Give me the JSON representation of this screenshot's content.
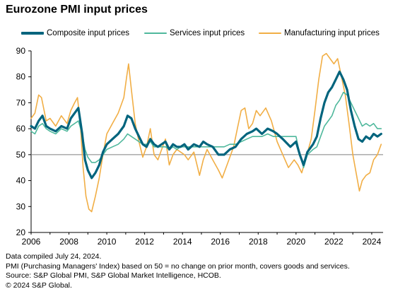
{
  "chart_data": {
    "type": "line",
    "title": "Eurozone PMI input prices",
    "xlabel": "",
    "ylabel": "",
    "xlim": [
      2006,
      2024.6
    ],
    "ylim": [
      20,
      90
    ],
    "yticks": [
      "20",
      "30",
      "40",
      "50",
      "60",
      "70",
      "80",
      "90"
    ],
    "xticks": [
      "2006",
      "2008",
      "2010",
      "2012",
      "2014",
      "2016",
      "2018",
      "2020",
      "2022",
      "2024"
    ],
    "reference_line": 50,
    "grid": false,
    "legend_position": "top",
    "colors": {
      "composite": "#00647d",
      "services": "#4fb89c",
      "manufacturing": "#f1ae45",
      "reference": "#7f7f7f",
      "axis": "#000000"
    },
    "series": [
      {
        "name": "Composite input prices",
        "key": "composite",
        "points": [
          [
            2006.0,
            61
          ],
          [
            2006.2,
            60
          ],
          [
            2006.4,
            63
          ],
          [
            2006.6,
            65
          ],
          [
            2006.8,
            61
          ],
          [
            2007.0,
            60
          ],
          [
            2007.3,
            59
          ],
          [
            2007.6,
            61
          ],
          [
            2007.9,
            60
          ],
          [
            2008.1,
            64
          ],
          [
            2008.3,
            66
          ],
          [
            2008.5,
            68
          ],
          [
            2008.7,
            58
          ],
          [
            2008.85,
            48
          ],
          [
            2009.0,
            44
          ],
          [
            2009.2,
            41
          ],
          [
            2009.4,
            43
          ],
          [
            2009.6,
            46
          ],
          [
            2009.8,
            51
          ],
          [
            2010.0,
            54
          ],
          [
            2010.3,
            56
          ],
          [
            2010.6,
            58
          ],
          [
            2010.9,
            61
          ],
          [
            2011.1,
            65
          ],
          [
            2011.3,
            64
          ],
          [
            2011.5,
            60
          ],
          [
            2011.7,
            57
          ],
          [
            2011.9,
            54
          ],
          [
            2012.1,
            53
          ],
          [
            2012.3,
            56
          ],
          [
            2012.5,
            54
          ],
          [
            2012.7,
            53
          ],
          [
            2012.9,
            54
          ],
          [
            2013.1,
            55
          ],
          [
            2013.3,
            52
          ],
          [
            2013.5,
            54
          ],
          [
            2013.7,
            53
          ],
          [
            2013.9,
            53
          ],
          [
            2014.1,
            54
          ],
          [
            2014.3,
            52
          ],
          [
            2014.6,
            54
          ],
          [
            2014.9,
            53
          ],
          [
            2015.1,
            55
          ],
          [
            2015.3,
            54
          ],
          [
            2015.6,
            53
          ],
          [
            2015.9,
            50
          ],
          [
            2016.2,
            50
          ],
          [
            2016.5,
            52
          ],
          [
            2016.8,
            53
          ],
          [
            2017.1,
            56
          ],
          [
            2017.4,
            58
          ],
          [
            2017.7,
            59
          ],
          [
            2017.9,
            60
          ],
          [
            2018.2,
            58
          ],
          [
            2018.5,
            60
          ],
          [
            2018.8,
            59
          ],
          [
            2019.0,
            58
          ],
          [
            2019.3,
            56
          ],
          [
            2019.7,
            53
          ],
          [
            2020.0,
            55
          ],
          [
            2020.2,
            50
          ],
          [
            2020.4,
            46
          ],
          [
            2020.6,
            51
          ],
          [
            2020.9,
            54
          ],
          [
            2021.1,
            57
          ],
          [
            2021.3,
            64
          ],
          [
            2021.5,
            70
          ],
          [
            2021.7,
            74
          ],
          [
            2021.9,
            76
          ],
          [
            2022.1,
            79
          ],
          [
            2022.3,
            82
          ],
          [
            2022.5,
            79
          ],
          [
            2022.7,
            75
          ],
          [
            2022.9,
            67
          ],
          [
            2023.1,
            61
          ],
          [
            2023.3,
            56
          ],
          [
            2023.5,
            55
          ],
          [
            2023.7,
            57
          ],
          [
            2023.9,
            56
          ],
          [
            2024.1,
            58
          ],
          [
            2024.3,
            57
          ],
          [
            2024.5,
            58
          ]
        ]
      },
      {
        "name": "Services input prices",
        "key": "services",
        "points": [
          [
            2006.0,
            59
          ],
          [
            2006.2,
            58
          ],
          [
            2006.4,
            61
          ],
          [
            2006.6,
            62
          ],
          [
            2006.8,
            60
          ],
          [
            2007.0,
            59
          ],
          [
            2007.3,
            58
          ],
          [
            2007.6,
            60
          ],
          [
            2007.9,
            59
          ],
          [
            2008.1,
            61
          ],
          [
            2008.3,
            62
          ],
          [
            2008.5,
            63
          ],
          [
            2008.7,
            58
          ],
          [
            2008.85,
            52
          ],
          [
            2009.0,
            49
          ],
          [
            2009.2,
            47
          ],
          [
            2009.4,
            47
          ],
          [
            2009.6,
            48
          ],
          [
            2009.8,
            50
          ],
          [
            2010.0,
            52
          ],
          [
            2010.3,
            53
          ],
          [
            2010.6,
            54
          ],
          [
            2010.9,
            56
          ],
          [
            2011.1,
            58
          ],
          [
            2011.3,
            57
          ],
          [
            2011.5,
            56
          ],
          [
            2011.7,
            55
          ],
          [
            2011.9,
            54
          ],
          [
            2012.1,
            54
          ],
          [
            2012.3,
            55
          ],
          [
            2012.5,
            53
          ],
          [
            2012.7,
            53
          ],
          [
            2012.9,
            53
          ],
          [
            2013.1,
            53
          ],
          [
            2013.3,
            52
          ],
          [
            2013.5,
            53
          ],
          [
            2013.7,
            52
          ],
          [
            2013.9,
            53
          ],
          [
            2014.1,
            53
          ],
          [
            2014.3,
            53
          ],
          [
            2014.6,
            53
          ],
          [
            2014.9,
            53
          ],
          [
            2015.1,
            53
          ],
          [
            2015.3,
            53
          ],
          [
            2015.6,
            53
          ],
          [
            2015.9,
            53
          ],
          [
            2016.2,
            53
          ],
          [
            2016.5,
            54
          ],
          [
            2016.8,
            54
          ],
          [
            2017.1,
            55
          ],
          [
            2017.4,
            56
          ],
          [
            2017.7,
            57
          ],
          [
            2017.9,
            57
          ],
          [
            2018.2,
            57
          ],
          [
            2018.5,
            58
          ],
          [
            2018.8,
            57
          ],
          [
            2019.0,
            57
          ],
          [
            2019.3,
            57
          ],
          [
            2019.7,
            57
          ],
          [
            2020.0,
            57
          ],
          [
            2020.2,
            50
          ],
          [
            2020.4,
            45
          ],
          [
            2020.6,
            50
          ],
          [
            2020.9,
            52
          ],
          [
            2021.1,
            53
          ],
          [
            2021.3,
            57
          ],
          [
            2021.5,
            61
          ],
          [
            2021.7,
            63
          ],
          [
            2021.9,
            65
          ],
          [
            2022.1,
            69
          ],
          [
            2022.3,
            71
          ],
          [
            2022.5,
            74
          ],
          [
            2022.7,
            73
          ],
          [
            2022.9,
            70
          ],
          [
            2023.1,
            67
          ],
          [
            2023.3,
            64
          ],
          [
            2023.5,
            61
          ],
          [
            2023.7,
            62
          ],
          [
            2023.9,
            61
          ],
          [
            2024.1,
            62
          ],
          [
            2024.3,
            60
          ],
          [
            2024.5,
            60
          ]
        ]
      },
      {
        "name": "Manufacturing input prices",
        "key": "manufacturing",
        "points": [
          [
            2006.0,
            64
          ],
          [
            2006.2,
            66
          ],
          [
            2006.4,
            73
          ],
          [
            2006.55,
            72
          ],
          [
            2006.8,
            63
          ],
          [
            2007.0,
            64
          ],
          [
            2007.3,
            61
          ],
          [
            2007.6,
            65
          ],
          [
            2007.9,
            62
          ],
          [
            2008.1,
            67
          ],
          [
            2008.3,
            70
          ],
          [
            2008.45,
            72
          ],
          [
            2008.6,
            62
          ],
          [
            2008.75,
            45
          ],
          [
            2008.9,
            34
          ],
          [
            2009.05,
            29
          ],
          [
            2009.2,
            28
          ],
          [
            2009.4,
            34
          ],
          [
            2009.6,
            41
          ],
          [
            2009.8,
            50
          ],
          [
            2010.0,
            58
          ],
          [
            2010.3,
            62
          ],
          [
            2010.6,
            66
          ],
          [
            2010.9,
            72
          ],
          [
            2011.05,
            80
          ],
          [
            2011.15,
            85
          ],
          [
            2011.3,
            75
          ],
          [
            2011.5,
            62
          ],
          [
            2011.7,
            55
          ],
          [
            2011.9,
            49
          ],
          [
            2012.1,
            53
          ],
          [
            2012.3,
            60
          ],
          [
            2012.5,
            50
          ],
          [
            2012.7,
            48
          ],
          [
            2012.9,
            52
          ],
          [
            2013.1,
            56
          ],
          [
            2013.3,
            46
          ],
          [
            2013.5,
            50
          ],
          [
            2013.7,
            52
          ],
          [
            2013.9,
            51
          ],
          [
            2014.1,
            50
          ],
          [
            2014.3,
            48
          ],
          [
            2014.6,
            51
          ],
          [
            2014.9,
            42
          ],
          [
            2015.1,
            48
          ],
          [
            2015.3,
            52
          ],
          [
            2015.6,
            48
          ],
          [
            2015.9,
            44
          ],
          [
            2016.1,
            41
          ],
          [
            2016.4,
            47
          ],
          [
            2016.7,
            53
          ],
          [
            2016.9,
            60
          ],
          [
            2017.1,
            67
          ],
          [
            2017.3,
            68
          ],
          [
            2017.5,
            60
          ],
          [
            2017.7,
            62
          ],
          [
            2017.9,
            67
          ],
          [
            2018.1,
            65
          ],
          [
            2018.4,
            68
          ],
          [
            2018.7,
            63
          ],
          [
            2019.0,
            55
          ],
          [
            2019.3,
            50
          ],
          [
            2019.6,
            45
          ],
          [
            2019.9,
            48
          ],
          [
            2020.1,
            46
          ],
          [
            2020.3,
            43
          ],
          [
            2020.5,
            48
          ],
          [
            2020.8,
            56
          ],
          [
            2021.0,
            67
          ],
          [
            2021.2,
            79
          ],
          [
            2021.4,
            88
          ],
          [
            2021.6,
            89
          ],
          [
            2021.8,
            87
          ],
          [
            2022.0,
            85
          ],
          [
            2022.2,
            87
          ],
          [
            2022.4,
            80
          ],
          [
            2022.6,
            73
          ],
          [
            2022.8,
            62
          ],
          [
            2023.0,
            50
          ],
          [
            2023.2,
            42
          ],
          [
            2023.35,
            36
          ],
          [
            2023.5,
            40
          ],
          [
            2023.7,
            42
          ],
          [
            2023.9,
            43
          ],
          [
            2024.1,
            48
          ],
          [
            2024.3,
            50
          ],
          [
            2024.5,
            54
          ]
        ]
      }
    ]
  },
  "notes": [
    "Data compiled July 24, 2024.",
    "PMI (Purchasing Managers' Index) based on 50 = no change on prior month, covers goods and services.",
    "Source: S&P Global PMI, S&P Global Market Intelligence, HCOB.",
    "© 2024 S&P Global."
  ]
}
